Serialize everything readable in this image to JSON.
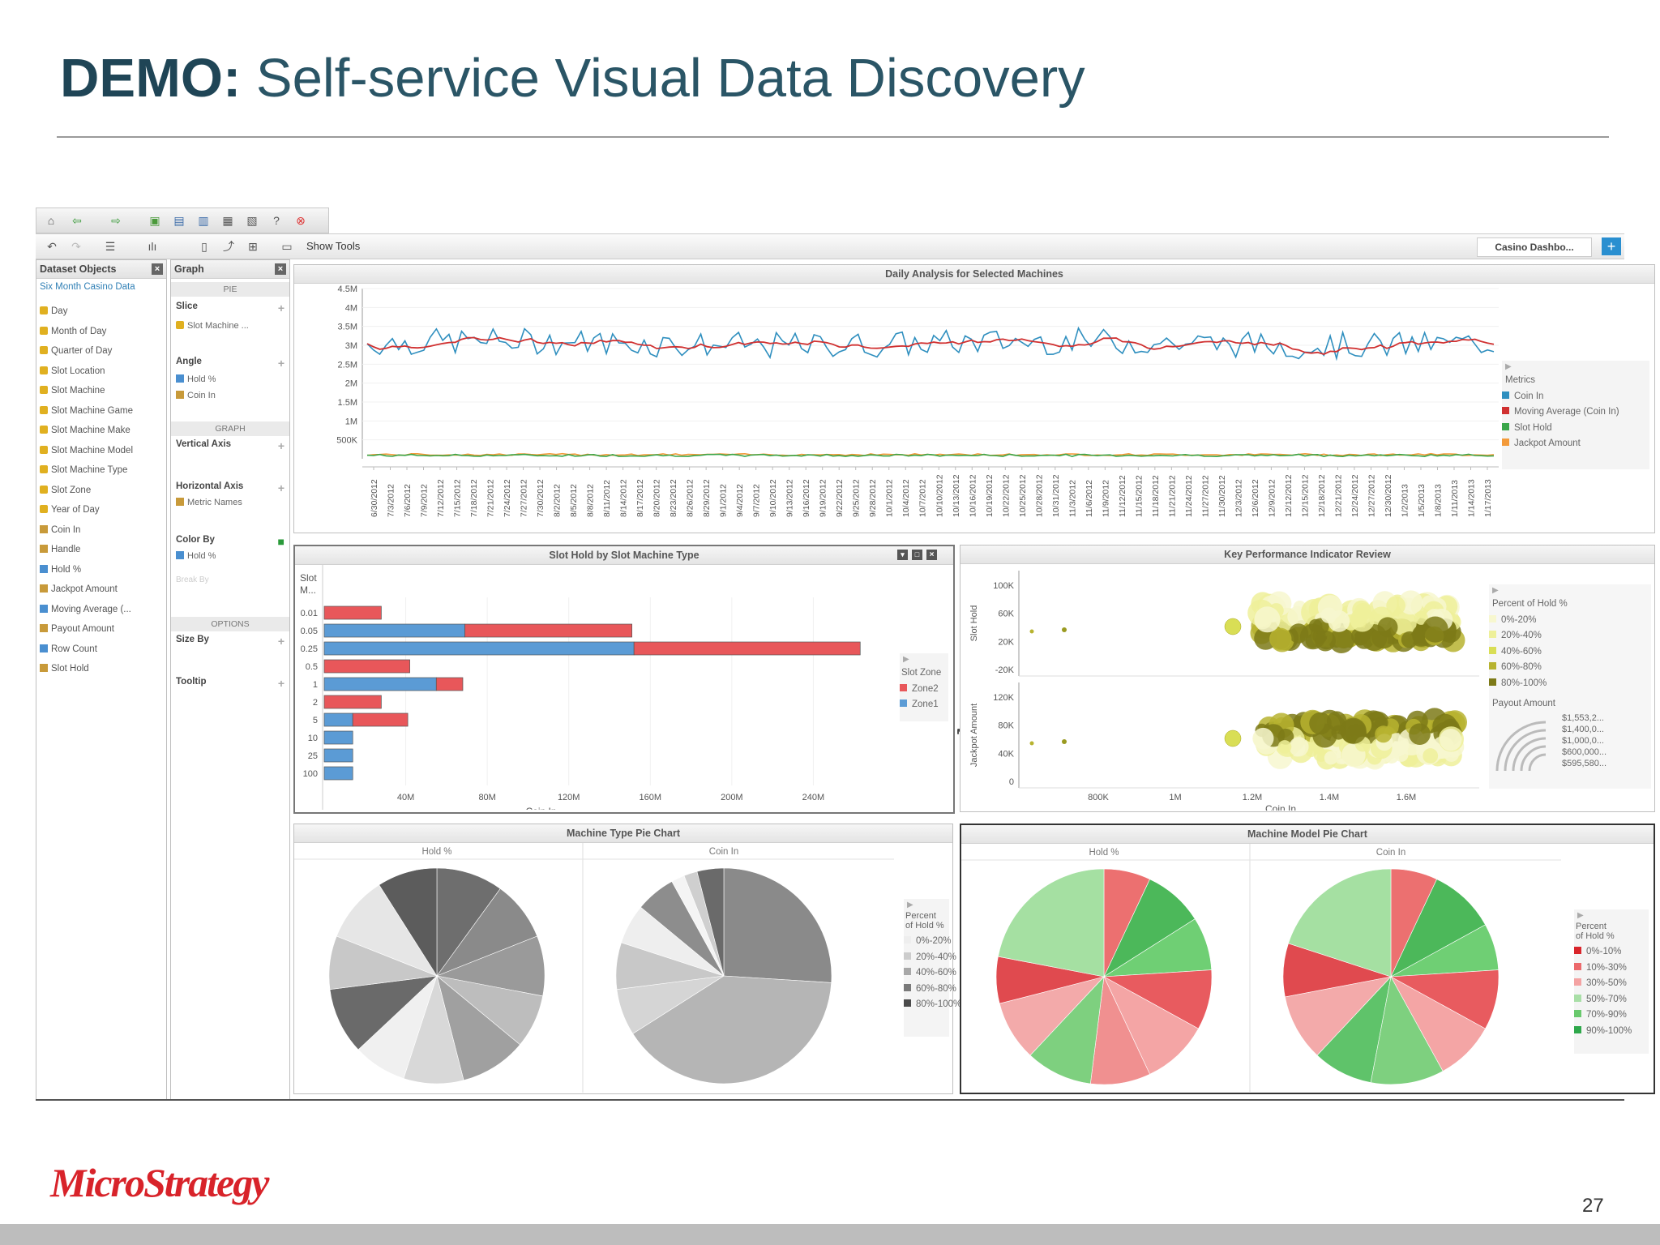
{
  "slide": {
    "title_bold": "DEMO:",
    "title_rest": " Self-service Visual Data Discovery",
    "page_number": "27",
    "logo_text": "MicroStrategy"
  },
  "toolbar": {
    "show_tools_label": "Show Tools",
    "dashboard_tab": "Casino Dashbo...",
    "add_tab": "+"
  },
  "dataset_panel": {
    "title": "Dataset Objects",
    "dataset_name": "Six Month Casino Data",
    "items": [
      {
        "label": "Day",
        "kind": "attribute"
      },
      {
        "label": "Month of Day",
        "kind": "attribute"
      },
      {
        "label": "Quarter of Day",
        "kind": "attribute"
      },
      {
        "label": "Slot Location",
        "kind": "attribute"
      },
      {
        "label": "Slot Machine",
        "kind": "attribute"
      },
      {
        "label": "Slot Machine Game",
        "kind": "attribute"
      },
      {
        "label": "Slot Machine Make",
        "kind": "attribute"
      },
      {
        "label": "Slot Machine Model",
        "kind": "attribute"
      },
      {
        "label": "Slot Machine Type",
        "kind": "attribute"
      },
      {
        "label": "Slot Zone",
        "kind": "attribute"
      },
      {
        "label": "Year of Day",
        "kind": "attribute"
      },
      {
        "label": "Coin In",
        "kind": "metric"
      },
      {
        "label": "Handle",
        "kind": "metric"
      },
      {
        "label": "Hold %",
        "kind": "derived"
      },
      {
        "label": "Jackpot Amount",
        "kind": "metric"
      },
      {
        "label": "Moving Average (...",
        "kind": "derived"
      },
      {
        "label": "Payout Amount",
        "kind": "metric"
      },
      {
        "label": "Row Count",
        "kind": "derived"
      },
      {
        "label": "Slot Hold",
        "kind": "metric"
      }
    ]
  },
  "graph_panel": {
    "title": "Graph",
    "pie_header": "PIE",
    "slice_label": "Slice",
    "slice_item": "Slot Machine ...",
    "angle_label": "Angle",
    "angle_items": [
      "Hold %",
      "Coin In"
    ],
    "graph_header": "GRAPH",
    "vertical_axis": "Vertical Axis",
    "horizontal_axis": "Horizontal Axis",
    "horizontal_item": "Metric Names",
    "color_by": "Color By",
    "color_item": "Hold %",
    "break_by": "Break By",
    "options_header": "OPTIONS",
    "size_by": "Size By",
    "tooltip": "Tooltip"
  },
  "daily_chart": {
    "title": "Daily Analysis for Selected Machines",
    "legend_title": "Metrics",
    "chart_data": {
      "type": "line",
      "title": "Daily Analysis for Selected Machines",
      "y_ticks": [
        "4.5M",
        "4M",
        "3.5M",
        "3M",
        "2.5M",
        "2M",
        "1.5M",
        "1M",
        "500K"
      ],
      "ylim": [
        0,
        4500000
      ],
      "x_labels": [
        "6/30/2012",
        "7/3/2012",
        "7/6/2012",
        "7/9/2012",
        "7/12/2012",
        "7/15/2012",
        "7/18/2012",
        "7/21/2012",
        "7/24/2012",
        "7/27/2012",
        "7/30/2012",
        "8/2/2012",
        "8/5/2012",
        "8/8/2012",
        "8/11/2012",
        "8/14/2012",
        "8/17/2012",
        "8/20/2012",
        "8/23/2012",
        "8/26/2012",
        "8/29/2012",
        "9/1/2012",
        "9/4/2012",
        "9/7/2012",
        "9/10/2012",
        "9/13/2012",
        "9/16/2012",
        "9/19/2012",
        "9/22/2012",
        "9/25/2012",
        "9/28/2012",
        "10/1/2012",
        "10/4/2012",
        "10/7/2012",
        "10/10/2012",
        "10/13/2012",
        "10/16/2012",
        "10/19/2012",
        "10/22/2012",
        "10/25/2012",
        "10/28/2012",
        "10/31/2012",
        "11/3/2012",
        "11/6/2012",
        "11/9/2012",
        "11/12/2012",
        "11/15/2012",
        "11/18/2012",
        "11/21/2012",
        "11/24/2012",
        "11/27/2012",
        "11/30/2012",
        "12/3/2012",
        "12/6/2012",
        "12/9/2012",
        "12/12/2012",
        "12/15/2012",
        "12/18/2012",
        "12/21/2012",
        "12/24/2012",
        "12/27/2012",
        "12/30/2012",
        "1/2/2013",
        "1/5/2013",
        "1/8/2013",
        "1/11/2013",
        "1/14/2013",
        "1/17/2013"
      ],
      "series": [
        {
          "name": "Coin In",
          "color": "#2f8fbf",
          "approx_mean": 3050000,
          "approx_amplitude": 350000
        },
        {
          "name": "Moving Average (Coin In)",
          "color": "#d03030",
          "approx_mean": 3050000
        },
        {
          "name": "Slot Hold",
          "color": "#3aa64a",
          "approx_mean": 90000
        },
        {
          "name": "Jackpot Amount",
          "color": "#f39a3a",
          "approx_mean": 110000
        }
      ]
    }
  },
  "bar_chart": {
    "title": "Slot Hold by Slot Machine Type",
    "category_header": "Slot M...",
    "legend_title": "Slot Zone",
    "xlabel": "Coin In",
    "chart_data": {
      "type": "bar",
      "orientation": "horizontal",
      "stacked": true,
      "title": "Slot Hold by Slot Machine Type",
      "xlabel": "Coin In",
      "categories": [
        "0.01",
        "0.05",
        "0.25",
        "0.5",
        "1",
        "2",
        "5",
        "10",
        "25",
        "100"
      ],
      "x_ticks": [
        "40M",
        "80M",
        "120M",
        "160M",
        "200M",
        "240M"
      ],
      "xlim": [
        0,
        280000000
      ],
      "series": [
        {
          "name": "Zone1",
          "color": "#5b9bd5",
          "values": [
            0,
            69000000,
            152000000,
            0,
            55000000,
            0,
            14000000,
            14000000,
            14000000,
            14000000
          ]
        },
        {
          "name": "Zone2",
          "color": "#e8575a",
          "values": [
            28000000,
            82000000,
            111000000,
            42000000,
            13000000,
            28000000,
            27000000,
            0,
            0,
            0
          ]
        }
      ]
    }
  },
  "kpi_chart": {
    "title": "Key Performance Indicator Review",
    "y1_label": "Slot Hold",
    "y2_label": "Jackpot Amount",
    "xlabel": "Coin In",
    "legend_color_title": "Percent of Hold %",
    "legend_size_title": "Payout Amount",
    "legend_color_items": [
      {
        "label": "0%-20%",
        "color": "#f7f7cf"
      },
      {
        "label": "20%-40%",
        "color": "#eef09a"
      },
      {
        "label": "40%-60%",
        "color": "#d9de55"
      },
      {
        "label": "60%-80%",
        "color": "#b7b330"
      },
      {
        "label": "80%-100%",
        "color": "#7d7a18"
      }
    ],
    "legend_size_items": [
      "$1,553,2...",
      "$1,400,0...",
      "$1,000,0...",
      "$600,000...",
      "$595,580..."
    ],
    "chart_data": {
      "type": "scatter",
      "title": "Key Performance Indicator Review",
      "xlabel": "Coin In",
      "x_ticks": [
        "800K",
        "1M",
        "1.2M",
        "1.4M",
        "1.6M"
      ],
      "panels": [
        {
          "ylabel": "Slot Hold",
          "y_ticks": [
            "100K",
            "60K",
            "20K",
            "-20K"
          ]
        },
        {
          "ylabel": "Jackpot Amount",
          "y_ticks": [
            "120K",
            "80K",
            "40K",
            "0"
          ]
        }
      ]
    }
  },
  "type_pies": {
    "title": "Machine Type Pie Chart",
    "legend_title_1": "Percent",
    "legend_title_2": "of Hold %",
    "legend_items": [
      {
        "label": "0%-20%",
        "color": "#eeeeee"
      },
      {
        "label": "20%-40%",
        "color": "#cccccc"
      },
      {
        "label": "40%-60%",
        "color": "#a8a8a8"
      },
      {
        "label": "60%-80%",
        "color": "#7a7a7a"
      },
      {
        "label": "80%-100%",
        "color": "#4a4a4a"
      }
    ],
    "chart_data": {
      "type": "pie",
      "title": "Machine Type Pie Chart",
      "pies": [
        {
          "label": "Hold %",
          "slices": [
            {
              "value": 10,
              "color": "#6e6e6e"
            },
            {
              "value": 9,
              "color": "#8a8a8a"
            },
            {
              "value": 9,
              "color": "#9a9a9a"
            },
            {
              "value": 8,
              "color": "#bdbdbd"
            },
            {
              "value": 10,
              "color": "#a0a0a0"
            },
            {
              "value": 9,
              "color": "#d8d8d8"
            },
            {
              "value": 8,
              "color": "#f0f0f0"
            },
            {
              "value": 10,
              "color": "#6a6a6a"
            },
            {
              "value": 8,
              "color": "#c8c8c8"
            },
            {
              "value": 10,
              "color": "#e6e6e6"
            },
            {
              "value": 9,
              "color": "#5c5c5c"
            }
          ]
        },
        {
          "label": "Coin In",
          "slices": [
            {
              "value": 26,
              "color": "#8a8a8a"
            },
            {
              "value": 40,
              "color": "#b5b5b5"
            },
            {
              "value": 7,
              "color": "#d5d5d5"
            },
            {
              "value": 7,
              "color": "#c8c8c8"
            },
            {
              "value": 6,
              "color": "#eeeeee"
            },
            {
              "value": 6,
              "color": "#8d8d8d"
            },
            {
              "value": 2,
              "color": "#f4f4f4"
            },
            {
              "value": 2,
              "color": "#cfcfcf"
            },
            {
              "value": 4,
              "color": "#6a6a6a"
            }
          ]
        }
      ]
    }
  },
  "model_pies": {
    "title": "Machine Model Pie Chart",
    "legend_title_1": "Percent",
    "legend_title_2": "of Hold %",
    "legend_items": [
      {
        "label": "0%-10%",
        "color": "#d9252b"
      },
      {
        "label": "10%-30%",
        "color": "#ec6a6c"
      },
      {
        "label": "30%-50%",
        "color": "#f4a3a3"
      },
      {
        "label": "50%-70%",
        "color": "#a9dfa7"
      },
      {
        "label": "70%-90%",
        "color": "#69c96d"
      },
      {
        "label": "90%-100%",
        "color": "#2ea84b"
      }
    ],
    "chart_data": {
      "type": "pie",
      "title": "Machine Model Pie Chart",
      "pies": [
        {
          "label": "Hold %",
          "slices": [
            {
              "value": 7,
              "color": "#ec7070"
            },
            {
              "value": 9,
              "color": "#4cb85a"
            },
            {
              "value": 8,
              "color": "#6fcf74"
            },
            {
              "value": 9,
              "color": "#e85b5f"
            },
            {
              "value": 10,
              "color": "#f4a5a5"
            },
            {
              "value": 9,
              "color": "#f09090"
            },
            {
              "value": 10,
              "color": "#7ed07f"
            },
            {
              "value": 9,
              "color": "#f3aaaa"
            },
            {
              "value": 7,
              "color": "#e04a4f"
            },
            {
              "value": 22,
              "color": "#a5e0a2"
            }
          ]
        },
        {
          "label": "Coin In",
          "slices": [
            {
              "value": 7,
              "color": "#ec7070"
            },
            {
              "value": 10,
              "color": "#4cb85a"
            },
            {
              "value": 7,
              "color": "#6fcf74"
            },
            {
              "value": 9,
              "color": "#e85b5f"
            },
            {
              "value": 9,
              "color": "#f4a5a5"
            },
            {
              "value": 11,
              "color": "#7ed07f"
            },
            {
              "value": 9,
              "color": "#5fc36a"
            },
            {
              "value": 10,
              "color": "#f3aaaa"
            },
            {
              "value": 8,
              "color": "#e04a4f"
            },
            {
              "value": 20,
              "color": "#a5e0a2"
            }
          ]
        }
      ]
    }
  }
}
